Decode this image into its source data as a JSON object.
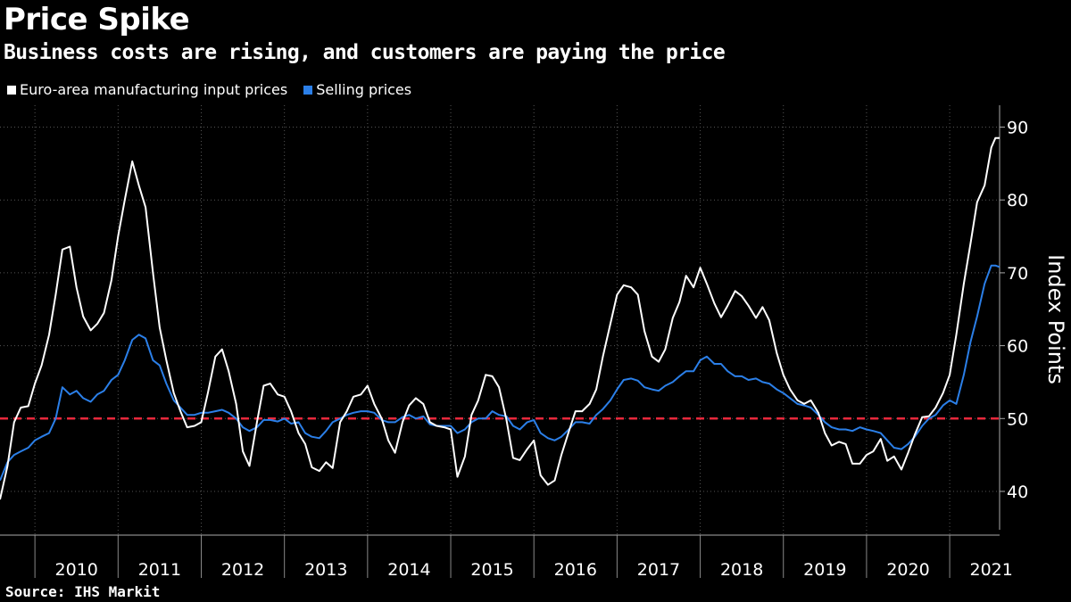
{
  "header": {
    "title": "Price Spike",
    "subtitle": "Business costs are rising, and customers are paying the price"
  },
  "footer": {
    "source": "Source: IHS Markit"
  },
  "colors": {
    "input": "#ffffff",
    "selling": "#2b7fe8",
    "reference": "#e8283c",
    "grid": "#555555",
    "background": "#000000"
  },
  "chart_data": {
    "type": "line",
    "title": "Price Spike",
    "subtitle": "Business costs are rising, and customers are paying the price",
    "ylabel": "Index Points",
    "xlabel": "",
    "ylim": [
      34,
      93
    ],
    "yticks": [
      40,
      50,
      60,
      70,
      80,
      90
    ],
    "xlim": [
      2009.58,
      2021.6
    ],
    "year_labels": [
      "2010",
      "2011",
      "2012",
      "2013",
      "2014",
      "2015",
      "2016",
      "2017",
      "2018",
      "2019",
      "2020",
      "2021"
    ],
    "reference_line": {
      "y": 50,
      "style": "dashed",
      "color": "#e8283c"
    },
    "grid": true,
    "legend_position": "top-left",
    "series": [
      {
        "name": "Euro-area manufacturing input prices",
        "color": "#ffffff",
        "points": [
          [
            2009.58,
            38.9
          ],
          [
            2009.67,
            43.5
          ],
          [
            2009.75,
            49.5
          ],
          [
            2009.83,
            51.5
          ],
          [
            2009.92,
            51.7
          ],
          [
            2010.0,
            54.8
          ],
          [
            2010.08,
            57.3
          ],
          [
            2010.17,
            61.5
          ],
          [
            2010.25,
            67.0
          ],
          [
            2010.33,
            73.2
          ],
          [
            2010.42,
            73.6
          ],
          [
            2010.5,
            68.0
          ],
          [
            2010.58,
            64.0
          ],
          [
            2010.67,
            62.1
          ],
          [
            2010.75,
            63.0
          ],
          [
            2010.83,
            64.5
          ],
          [
            2010.92,
            69.0
          ],
          [
            2011.0,
            75.0
          ],
          [
            2011.08,
            80.0
          ],
          [
            2011.17,
            85.3
          ],
          [
            2011.25,
            82.0
          ],
          [
            2011.33,
            79.0
          ],
          [
            2011.42,
            70.0
          ],
          [
            2011.5,
            62.5
          ],
          [
            2011.58,
            58.0
          ],
          [
            2011.67,
            53.5
          ],
          [
            2011.75,
            51.0
          ],
          [
            2011.83,
            48.8
          ],
          [
            2011.92,
            49.0
          ],
          [
            2012.0,
            49.5
          ],
          [
            2012.08,
            53.5
          ],
          [
            2012.17,
            58.5
          ],
          [
            2012.25,
            59.5
          ],
          [
            2012.33,
            56.5
          ],
          [
            2012.42,
            52.0
          ],
          [
            2012.5,
            45.5
          ],
          [
            2012.58,
            43.5
          ],
          [
            2012.67,
            49.5
          ],
          [
            2012.75,
            54.5
          ],
          [
            2012.83,
            54.8
          ],
          [
            2012.92,
            53.3
          ],
          [
            2013.0,
            53.0
          ],
          [
            2013.08,
            51.0
          ],
          [
            2013.17,
            48.0
          ],
          [
            2013.25,
            46.5
          ],
          [
            2013.33,
            43.3
          ],
          [
            2013.42,
            42.8
          ],
          [
            2013.5,
            44.0
          ],
          [
            2013.58,
            43.2
          ],
          [
            2013.67,
            49.5
          ],
          [
            2013.75,
            51.0
          ],
          [
            2013.83,
            53.0
          ],
          [
            2013.92,
            53.3
          ],
          [
            2014.0,
            54.5
          ],
          [
            2014.08,
            52.0
          ],
          [
            2014.17,
            50.0
          ],
          [
            2014.25,
            47.0
          ],
          [
            2014.33,
            45.3
          ],
          [
            2014.42,
            49.5
          ],
          [
            2014.5,
            51.8
          ],
          [
            2014.58,
            52.8
          ],
          [
            2014.67,
            52.0
          ],
          [
            2014.75,
            49.5
          ],
          [
            2014.83,
            49.0
          ],
          [
            2014.92,
            48.8
          ],
          [
            2015.0,
            48.5
          ],
          [
            2015.08,
            42.0
          ],
          [
            2015.17,
            44.8
          ],
          [
            2015.25,
            50.5
          ],
          [
            2015.33,
            52.5
          ],
          [
            2015.42,
            56.0
          ],
          [
            2015.5,
            55.8
          ],
          [
            2015.58,
            54.3
          ],
          [
            2015.67,
            49.8
          ],
          [
            2015.75,
            44.6
          ],
          [
            2015.83,
            44.3
          ],
          [
            2015.92,
            45.8
          ],
          [
            2016.0,
            47.0
          ],
          [
            2016.08,
            42.2
          ],
          [
            2016.17,
            40.9
          ],
          [
            2016.25,
            41.5
          ],
          [
            2016.33,
            45.0
          ],
          [
            2016.42,
            48.2
          ],
          [
            2016.5,
            51.0
          ],
          [
            2016.58,
            51.0
          ],
          [
            2016.67,
            52.0
          ],
          [
            2016.75,
            54.0
          ],
          [
            2016.83,
            58.5
          ],
          [
            2016.92,
            63.0
          ],
          [
            2017.0,
            67.0
          ],
          [
            2017.08,
            68.3
          ],
          [
            2017.17,
            68.0
          ],
          [
            2017.25,
            67.0
          ],
          [
            2017.33,
            62.0
          ],
          [
            2017.42,
            58.5
          ],
          [
            2017.5,
            57.8
          ],
          [
            2017.58,
            59.5
          ],
          [
            2017.67,
            63.8
          ],
          [
            2017.75,
            66.0
          ],
          [
            2017.83,
            69.6
          ],
          [
            2017.92,
            68.0
          ],
          [
            2018.0,
            70.7
          ],
          [
            2018.08,
            68.5
          ],
          [
            2018.17,
            65.8
          ],
          [
            2018.25,
            63.9
          ],
          [
            2018.33,
            65.5
          ],
          [
            2018.42,
            67.5
          ],
          [
            2018.5,
            66.8
          ],
          [
            2018.58,
            65.5
          ],
          [
            2018.67,
            63.8
          ],
          [
            2018.75,
            65.3
          ],
          [
            2018.83,
            63.5
          ],
          [
            2018.92,
            59.0
          ],
          [
            2019.0,
            56.0
          ],
          [
            2019.08,
            54.0
          ],
          [
            2019.17,
            52.5
          ],
          [
            2019.25,
            52.0
          ],
          [
            2019.33,
            52.5
          ],
          [
            2019.42,
            50.8
          ],
          [
            2019.5,
            48.0
          ],
          [
            2019.58,
            46.3
          ],
          [
            2019.67,
            46.8
          ],
          [
            2019.75,
            46.5
          ],
          [
            2019.83,
            43.8
          ],
          [
            2019.92,
            43.8
          ],
          [
            2020.0,
            45.0
          ],
          [
            2020.08,
            45.5
          ],
          [
            2020.17,
            47.2
          ],
          [
            2020.25,
            44.2
          ],
          [
            2020.33,
            44.8
          ],
          [
            2020.42,
            43.0
          ],
          [
            2020.5,
            45.3
          ],
          [
            2020.58,
            47.8
          ],
          [
            2020.67,
            50.2
          ],
          [
            2020.75,
            50.3
          ],
          [
            2020.83,
            51.5
          ],
          [
            2020.92,
            53.5
          ],
          [
            2021.0,
            56.0
          ],
          [
            2021.08,
            61.5
          ],
          [
            2021.17,
            68.5
          ],
          [
            2021.25,
            74.0
          ],
          [
            2021.33,
            79.7
          ],
          [
            2021.42,
            82.0
          ],
          [
            2021.5,
            87.2
          ],
          [
            2021.55,
            88.5
          ],
          [
            2021.6,
            88.5
          ]
        ]
      },
      {
        "name": "Selling prices",
        "color": "#2b7fe8",
        "points": [
          [
            2009.58,
            41.5
          ],
          [
            2009.67,
            44.0
          ],
          [
            2009.75,
            45.0
          ],
          [
            2009.83,
            45.5
          ],
          [
            2009.92,
            46.0
          ],
          [
            2010.0,
            47.0
          ],
          [
            2010.08,
            47.5
          ],
          [
            2010.17,
            48.0
          ],
          [
            2010.25,
            50.0
          ],
          [
            2010.33,
            54.3
          ],
          [
            2010.42,
            53.3
          ],
          [
            2010.5,
            53.8
          ],
          [
            2010.58,
            52.8
          ],
          [
            2010.67,
            52.3
          ],
          [
            2010.75,
            53.3
          ],
          [
            2010.83,
            53.8
          ],
          [
            2010.92,
            55.3
          ],
          [
            2011.0,
            56.0
          ],
          [
            2011.08,
            58.0
          ],
          [
            2011.17,
            60.8
          ],
          [
            2011.25,
            61.5
          ],
          [
            2011.33,
            61.0
          ],
          [
            2011.42,
            58.0
          ],
          [
            2011.5,
            57.3
          ],
          [
            2011.58,
            54.8
          ],
          [
            2011.67,
            52.5
          ],
          [
            2011.75,
            51.5
          ],
          [
            2011.83,
            50.5
          ],
          [
            2011.92,
            50.5
          ],
          [
            2012.0,
            50.8
          ],
          [
            2012.08,
            50.8
          ],
          [
            2012.17,
            51.0
          ],
          [
            2012.25,
            51.2
          ],
          [
            2012.33,
            50.8
          ],
          [
            2012.42,
            50.0
          ],
          [
            2012.5,
            48.8
          ],
          [
            2012.58,
            48.3
          ],
          [
            2012.67,
            48.8
          ],
          [
            2012.75,
            49.8
          ],
          [
            2012.83,
            49.8
          ],
          [
            2012.92,
            49.6
          ],
          [
            2013.0,
            50.0
          ],
          [
            2013.08,
            49.3
          ],
          [
            2013.17,
            49.5
          ],
          [
            2013.25,
            48.0
          ],
          [
            2013.33,
            47.5
          ],
          [
            2013.42,
            47.3
          ],
          [
            2013.5,
            48.3
          ],
          [
            2013.58,
            49.5
          ],
          [
            2013.67,
            50.0
          ],
          [
            2013.75,
            50.5
          ],
          [
            2013.83,
            50.8
          ],
          [
            2013.92,
            51.0
          ],
          [
            2014.0,
            51.0
          ],
          [
            2014.08,
            50.8
          ],
          [
            2014.17,
            49.8
          ],
          [
            2014.25,
            49.5
          ],
          [
            2014.33,
            49.5
          ],
          [
            2014.42,
            50.2
          ],
          [
            2014.5,
            50.5
          ],
          [
            2014.58,
            50.0
          ],
          [
            2014.67,
            50.3
          ],
          [
            2014.75,
            49.2
          ],
          [
            2014.83,
            49.0
          ],
          [
            2014.92,
            49.0
          ],
          [
            2015.0,
            49.0
          ],
          [
            2015.08,
            48.0
          ],
          [
            2015.17,
            48.5
          ],
          [
            2015.25,
            49.5
          ],
          [
            2015.33,
            50.0
          ],
          [
            2015.42,
            50.0
          ],
          [
            2015.5,
            51.0
          ],
          [
            2015.58,
            50.5
          ],
          [
            2015.67,
            50.3
          ],
          [
            2015.75,
            49.0
          ],
          [
            2015.83,
            48.5
          ],
          [
            2015.92,
            49.5
          ],
          [
            2016.0,
            49.8
          ],
          [
            2016.08,
            48.0
          ],
          [
            2016.17,
            47.3
          ],
          [
            2016.25,
            47.0
          ],
          [
            2016.33,
            47.5
          ],
          [
            2016.42,
            48.5
          ],
          [
            2016.5,
            49.5
          ],
          [
            2016.58,
            49.5
          ],
          [
            2016.67,
            49.3
          ],
          [
            2016.75,
            50.5
          ],
          [
            2016.83,
            51.3
          ],
          [
            2016.92,
            52.5
          ],
          [
            2017.0,
            54.0
          ],
          [
            2017.08,
            55.3
          ],
          [
            2017.17,
            55.5
          ],
          [
            2017.25,
            55.2
          ],
          [
            2017.33,
            54.3
          ],
          [
            2017.42,
            54.0
          ],
          [
            2017.5,
            53.8
          ],
          [
            2017.58,
            54.5
          ],
          [
            2017.67,
            55.0
          ],
          [
            2017.75,
            55.8
          ],
          [
            2017.83,
            56.5
          ],
          [
            2017.92,
            56.5
          ],
          [
            2018.0,
            58.0
          ],
          [
            2018.08,
            58.5
          ],
          [
            2018.17,
            57.5
          ],
          [
            2018.25,
            57.5
          ],
          [
            2018.33,
            56.5
          ],
          [
            2018.42,
            55.8
          ],
          [
            2018.5,
            55.8
          ],
          [
            2018.58,
            55.3
          ],
          [
            2018.67,
            55.5
          ],
          [
            2018.75,
            55.0
          ],
          [
            2018.83,
            54.8
          ],
          [
            2018.92,
            54.0
          ],
          [
            2019.0,
            53.5
          ],
          [
            2019.08,
            52.8
          ],
          [
            2019.17,
            52.0
          ],
          [
            2019.25,
            51.8
          ],
          [
            2019.33,
            51.5
          ],
          [
            2019.42,
            50.5
          ],
          [
            2019.5,
            49.5
          ],
          [
            2019.58,
            48.8
          ],
          [
            2019.67,
            48.5
          ],
          [
            2019.75,
            48.5
          ],
          [
            2019.83,
            48.3
          ],
          [
            2019.92,
            48.8
          ],
          [
            2020.0,
            48.5
          ],
          [
            2020.08,
            48.3
          ],
          [
            2020.17,
            48.0
          ],
          [
            2020.25,
            47.0
          ],
          [
            2020.33,
            46.0
          ],
          [
            2020.42,
            45.8
          ],
          [
            2020.5,
            46.5
          ],
          [
            2020.58,
            47.5
          ],
          [
            2020.67,
            49.0
          ],
          [
            2020.75,
            50.0
          ],
          [
            2020.83,
            50.5
          ],
          [
            2020.92,
            51.8
          ],
          [
            2021.0,
            52.5
          ],
          [
            2021.08,
            52.0
          ],
          [
            2021.17,
            56.0
          ],
          [
            2021.25,
            60.5
          ],
          [
            2021.33,
            64.0
          ],
          [
            2021.42,
            68.5
          ],
          [
            2021.5,
            71.0
          ],
          [
            2021.55,
            71.0
          ],
          [
            2021.6,
            70.8
          ]
        ]
      }
    ]
  }
}
